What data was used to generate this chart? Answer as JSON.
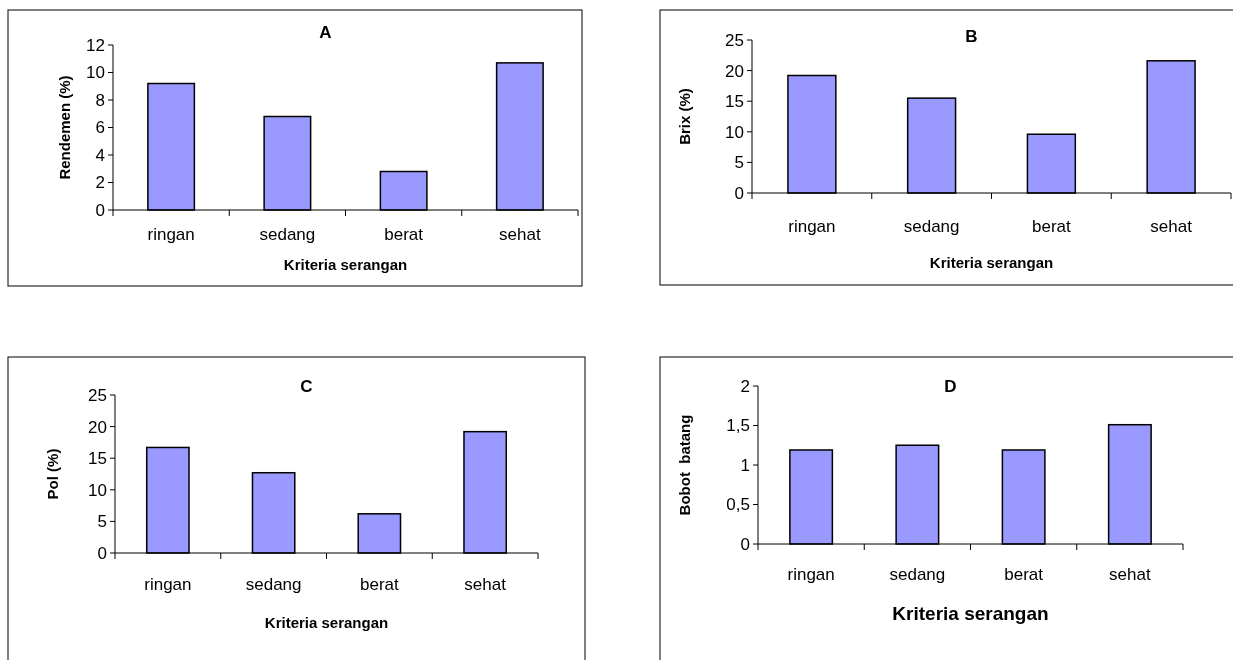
{
  "chart_data": [
    {
      "type": "bar",
      "title": "A",
      "xlabel": "Kriteria serangan",
      "ylabel": "Rendemen (%)",
      "categories": [
        "ringan",
        "sedang",
        "berat",
        "sehat"
      ],
      "values": [
        9.2,
        6.8,
        2.8,
        10.7
      ],
      "color": "#9999ff",
      "ylim": [
        0,
        12
      ],
      "yticks": [
        0,
        2,
        4,
        6,
        8,
        10,
        12
      ],
      "grid": false
    },
    {
      "type": "bar",
      "title": "B",
      "xlabel": "Kriteria serangan",
      "ylabel": "Brix (%)",
      "categories": [
        "ringan",
        "sedang",
        "berat",
        "sehat"
      ],
      "values": [
        19.2,
        15.5,
        9.6,
        21.6
      ],
      "color": "#9999ff",
      "ylim": [
        0,
        25
      ],
      "yticks": [
        0,
        5,
        10,
        15,
        20,
        25
      ],
      "grid": false
    },
    {
      "type": "bar",
      "title": "C",
      "xlabel": "Kriteria serangan",
      "ylabel": "Pol (%)",
      "categories": [
        "ringan",
        "sedang",
        "berat",
        "sehat"
      ],
      "values": [
        16.7,
        12.7,
        6.2,
        19.2
      ],
      "color": "#9999ff",
      "ylim": [
        0,
        25
      ],
      "yticks": [
        0,
        5,
        10,
        15,
        20,
        25
      ],
      "grid": false
    },
    {
      "type": "bar",
      "title": "D",
      "xlabel": "Kriteria serangan",
      "ylabel": "Bobot  batang",
      "categories": [
        "ringan",
        "sedang",
        "berat",
        "sehat"
      ],
      "values": [
        1.19,
        1.25,
        1.19,
        1.51
      ],
      "color": "#9999ff",
      "ylim": [
        0,
        2
      ],
      "yticks": [
        0,
        {
          "value": 0.5,
          "label": "0,5"
        },
        1,
        {
          "value": 1.5,
          "label": "1,5"
        },
        2
      ],
      "grid": false
    }
  ]
}
